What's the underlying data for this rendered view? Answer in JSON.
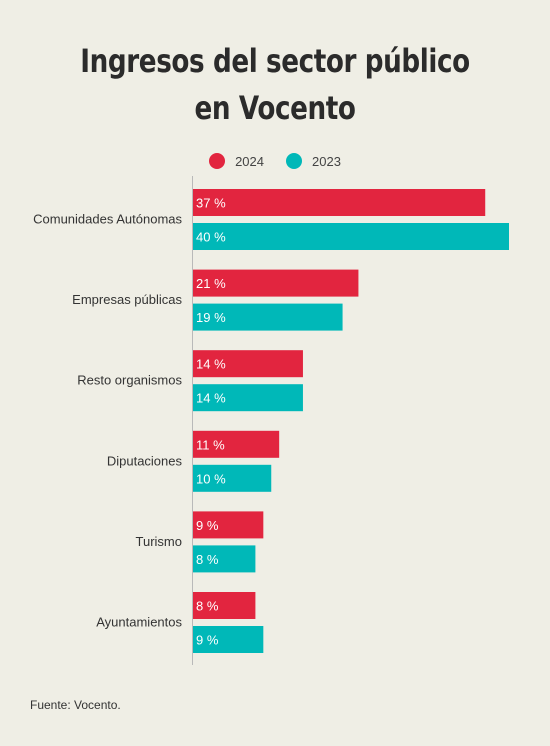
{
  "title_line1": "Ingresos del sector público",
  "title_line2": "en Vocento",
  "source": "Fuente: Vocento.",
  "colors": {
    "2024": "#e2253f",
    "2023": "#00b8b8",
    "axis": "#b9b9b9",
    "background": "#efeee5"
  },
  "chart_data": {
    "type": "bar",
    "orientation": "horizontal",
    "title": "Ingresos del sector público en Vocento",
    "categories": [
      "Comunidades Autónomas",
      "Empresas públicas",
      "Resto organismos",
      "Diputaciones",
      "Turismo",
      "Ayuntamientos"
    ],
    "series": [
      {
        "name": "2024",
        "values": [
          37,
          21,
          14,
          11,
          9,
          8
        ],
        "labels": [
          "37 %",
          "21 %",
          "14 %",
          "11 %",
          "9 %",
          "8 %"
        ]
      },
      {
        "name": "2023",
        "values": [
          40,
          19,
          14,
          10,
          8,
          9
        ],
        "labels": [
          "40 %",
          "19 %",
          "14 %",
          "10 %",
          "8 %",
          "9 %"
        ]
      }
    ],
    "unit": "%",
    "xlim": [
      0,
      40
    ],
    "legend_position": "top",
    "grid": false
  }
}
